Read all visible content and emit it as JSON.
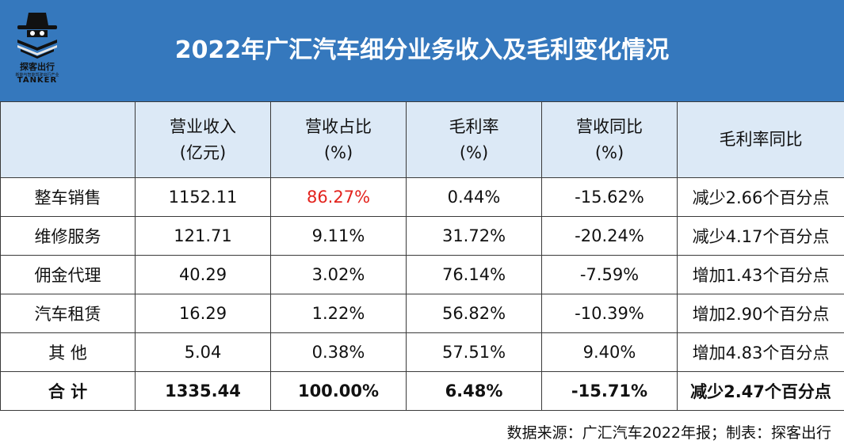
{
  "logo": {
    "name_cn": "探客出行",
    "tagline": "新能与智能驾驶出行产业",
    "name_en": "TANKER"
  },
  "title": "2022年广汇汽车细分业务收入及毛利变化情况",
  "headers": [
    {
      "line1": "",
      "line2": ""
    },
    {
      "line1": "营业收入",
      "line2": "(亿元)"
    },
    {
      "line1": "营收占比",
      "line2": "(%)"
    },
    {
      "line1": "毛利率",
      "line2": "(%)"
    },
    {
      "line1": "营收同比",
      "line2": "(%)"
    },
    {
      "line1": "毛利率同比",
      "line2": ""
    }
  ],
  "rows": [
    {
      "name": "整车销售",
      "revenue": "1152.11",
      "share": "86.27%",
      "margin": "0.44%",
      "yoy": "-15.62%",
      "margin_yoy": "减少2.66个百分点"
    },
    {
      "name": "维修服务",
      "revenue": "121.71",
      "share": "9.11%",
      "margin": "31.72%",
      "yoy": "-20.24%",
      "margin_yoy": "减少4.17个百分点"
    },
    {
      "name": "佣金代理",
      "revenue": "40.29",
      "share": "3.02%",
      "margin": "76.14%",
      "yoy": "-7.59%",
      "margin_yoy": "增加1.43个百分点"
    },
    {
      "name": "汽车租赁",
      "revenue": "16.29",
      "share": "1.22%",
      "margin": "56.82%",
      "yoy": "-10.39%",
      "margin_yoy": "增加2.90个百分点"
    },
    {
      "name": "其 他",
      "revenue": "5.04",
      "share": "0.38%",
      "margin": "57.51%",
      "yoy": "9.40%",
      "margin_yoy": "增加4.83个百分点"
    },
    {
      "name": "合 计",
      "revenue": "1335.44",
      "share": "100.00%",
      "margin": "6.48%",
      "yoy": "-15.71%",
      "margin_yoy": "减少2.47个百分点"
    }
  ],
  "highlight_color": "#e3231d",
  "footer": "数据来源：广汇汽车2022年报；制表：探客出行"
}
